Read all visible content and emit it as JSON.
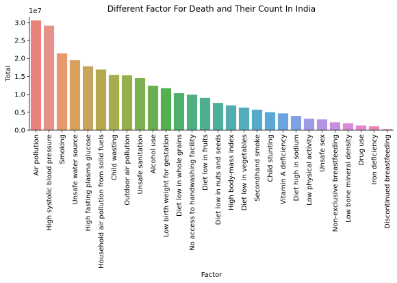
{
  "chart_data": {
    "type": "bar",
    "title": "Different Factor For Death and Their Count In India",
    "xlabel": "Factor",
    "ylabel": "Total",
    "y_multiplier_label": "1e7",
    "ylim": [
      0,
      3.15
    ],
    "yticks": [
      0.0,
      0.5,
      1.0,
      1.5,
      2.0,
      2.5,
      3.0
    ],
    "ytick_labels": [
      "0.0",
      "0.5",
      "1.0",
      "1.5",
      "2.0",
      "2.5",
      "3.0"
    ],
    "grid": false,
    "legend": "none",
    "categories": [
      "Air pollution",
      "High systolic blood pressure",
      "Smoking",
      "Unsafe water source",
      "High fasting plasma glucose",
      "Household air pollution from solid fuels",
      "Child wasting",
      "Outdoor air pollution",
      "Unsafe sanitation",
      "Alcohol use",
      "Low birth weight for gestation",
      "Diet low in whole grains",
      "No access to handwashing facility",
      "Diet low in fruits",
      "Diet low in nuts and seeds",
      "High body-mass index",
      "Diet low in vegetables",
      "Secondhand smoke",
      "Child stunting",
      "Vitamin A deficiency",
      "Diet high in sodium",
      "Low physical activity",
      "Unsafe sex",
      "Non-exclusive breastfeeding",
      "Low bone mineral density",
      "Drug use",
      "Iron deficiency",
      "Discontinued breastfeeding"
    ],
    "values": [
      3.06,
      2.91,
      2.14,
      1.95,
      1.78,
      1.69,
      1.54,
      1.53,
      1.45,
      1.24,
      1.17,
      1.03,
      0.99,
      0.9,
      0.76,
      0.69,
      0.63,
      0.57,
      0.5,
      0.47,
      0.4,
      0.32,
      0.3,
      0.22,
      0.19,
      0.13,
      0.11,
      0.03
    ],
    "colors": [
      "#e8827a",
      "#e6928a",
      "#e5996b",
      "#d99f5f",
      "#c8a45c",
      "#b5a84f",
      "#a4ac4d",
      "#94b04c",
      "#7fb04f",
      "#6caf50",
      "#52b04f",
      "#4db06b",
      "#4db07e",
      "#4eaf8f",
      "#4fae9d",
      "#50adab",
      "#52acba",
      "#55aac8",
      "#5ba8d6",
      "#6ba4de",
      "#82a0e6",
      "#9e9ae6",
      "#b494e4",
      "#c68fe0",
      "#d88ad9",
      "#e587cc",
      "#e886b6",
      "#ea8aa2"
    ]
  }
}
